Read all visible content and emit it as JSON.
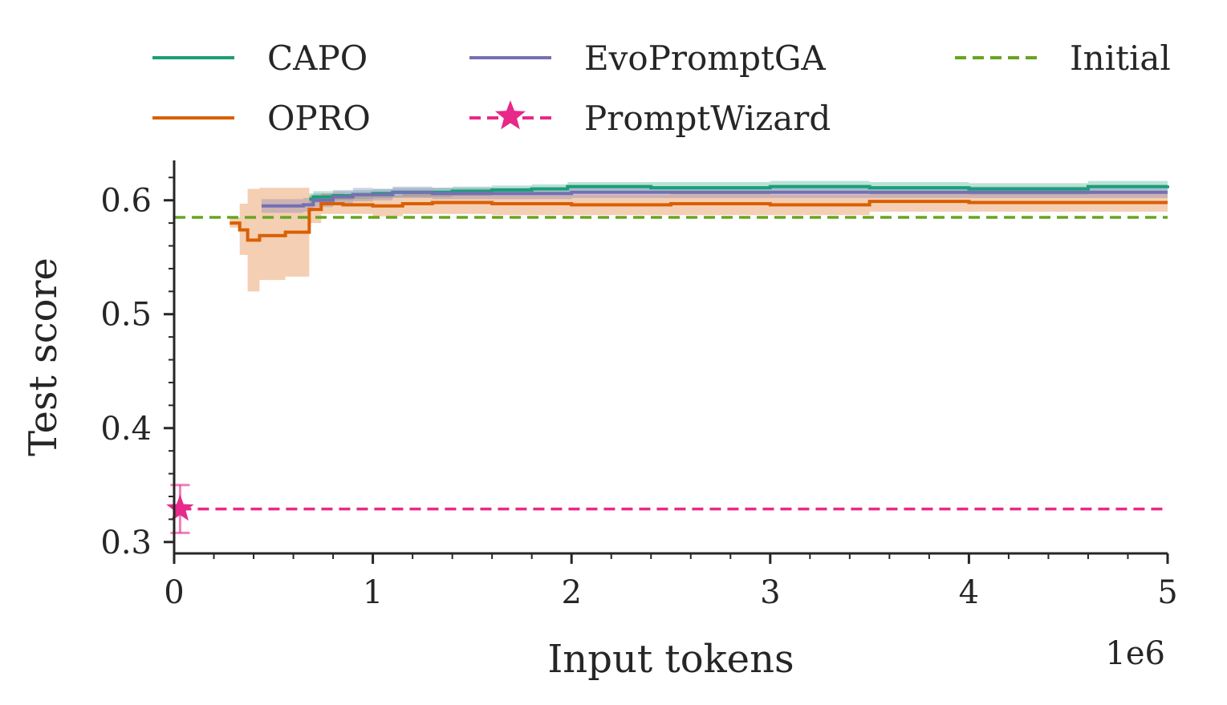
{
  "chart_data": {
    "type": "line",
    "xlabel": "Input tokens",
    "ylabel": "Test score",
    "x_offset_label": "1e6",
    "xlim": [
      0,
      5000000
    ],
    "ylim": [
      0.29,
      0.635
    ],
    "x_ticks": [
      0,
      1000000,
      2000000,
      3000000,
      4000000,
      5000000
    ],
    "x_tick_labels": [
      "0",
      "1",
      "2",
      "3",
      "4",
      "5"
    ],
    "y_ticks": [
      0.3,
      0.4,
      0.5,
      0.6
    ],
    "y_tick_labels": [
      "0.3",
      "0.4",
      "0.5",
      "0.6"
    ],
    "grid": false,
    "legend_position": "top",
    "series": [
      {
        "name": "CAPO",
        "color": "#1b9e77",
        "style": "solid",
        "x": [
          680000,
          700000,
          800000,
          900000,
          1000000,
          1100000,
          1250000,
          1400000,
          1600000,
          1800000,
          1980000,
          2100000,
          2400000,
          2700000,
          3000000,
          3500000,
          4000000,
          4600000,
          5000000
        ],
        "y": [
          0.601,
          0.603,
          0.604,
          0.605,
          0.606,
          0.607,
          0.607,
          0.608,
          0.609,
          0.61,
          0.612,
          0.612,
          0.611,
          0.611,
          0.612,
          0.611,
          0.61,
          0.612,
          0.613
        ],
        "band_low": [
          0.596,
          0.598,
          0.6,
          0.601,
          0.602,
          0.603,
          0.603,
          0.604,
          0.605,
          0.606,
          0.607,
          0.607,
          0.606,
          0.606,
          0.607,
          0.606,
          0.605,
          0.607,
          0.608
        ],
        "band_high": [
          0.606,
          0.608,
          0.608,
          0.609,
          0.61,
          0.611,
          0.611,
          0.612,
          0.613,
          0.614,
          0.616,
          0.616,
          0.616,
          0.616,
          0.617,
          0.616,
          0.615,
          0.617,
          0.618
        ]
      },
      {
        "name": "OPRO",
        "color": "#d95f02",
        "style": "solid",
        "x": [
          280000,
          330000,
          370000,
          430000,
          560000,
          680000,
          740000,
          850000,
          1000000,
          1150000,
          1300000,
          1600000,
          2000000,
          2500000,
          3000000,
          3500000,
          4000000,
          4500000,
          5000000
        ],
        "y": [
          0.58,
          0.574,
          0.565,
          0.569,
          0.572,
          0.592,
          0.597,
          0.596,
          0.595,
          0.597,
          0.598,
          0.597,
          0.596,
          0.597,
          0.596,
          0.599,
          0.598,
          0.598,
          0.598
        ],
        "band_low": [
          0.576,
          0.552,
          0.52,
          0.53,
          0.533,
          0.58,
          0.588,
          0.588,
          0.586,
          0.588,
          0.588,
          0.587,
          0.587,
          0.587,
          0.587,
          0.59,
          0.59,
          0.59,
          0.59
        ],
        "band_high": [
          0.585,
          0.597,
          0.61,
          0.611,
          0.611,
          0.604,
          0.606,
          0.605,
          0.604,
          0.606,
          0.607,
          0.606,
          0.605,
          0.606,
          0.605,
          0.608,
          0.607,
          0.607,
          0.607
        ]
      },
      {
        "name": "EvoPromptGA",
        "color": "#7570b3",
        "style": "solid",
        "x": [
          440000,
          650000,
          700000,
          800000,
          900000,
          1000000,
          1100000,
          1300000,
          1500000,
          2000000,
          2500000,
          3000000,
          3500000,
          4000000,
          4500000,
          5000000
        ],
        "y": [
          0.595,
          0.596,
          0.6,
          0.603,
          0.605,
          0.605,
          0.607,
          0.606,
          0.606,
          0.607,
          0.607,
          0.607,
          0.607,
          0.607,
          0.607,
          0.607
        ],
        "band_low": [
          0.589,
          0.59,
          0.594,
          0.597,
          0.599,
          0.6,
          0.602,
          0.601,
          0.601,
          0.602,
          0.602,
          0.602,
          0.602,
          0.602,
          0.602,
          0.602
        ],
        "band_high": [
          0.601,
          0.602,
          0.606,
          0.609,
          0.611,
          0.61,
          0.612,
          0.611,
          0.611,
          0.612,
          0.612,
          0.612,
          0.612,
          0.612,
          0.612,
          0.612
        ]
      },
      {
        "name": "PromptWizard",
        "color": "#e7298a",
        "style": "dashed",
        "marker": "star",
        "x": [
          30000
        ],
        "y": [
          0.329
        ],
        "error": [
          0.021
        ],
        "hline": 0.329
      },
      {
        "name": "Initial",
        "color": "#66a61e",
        "style": "dashed",
        "hline": 0.585
      }
    ]
  }
}
